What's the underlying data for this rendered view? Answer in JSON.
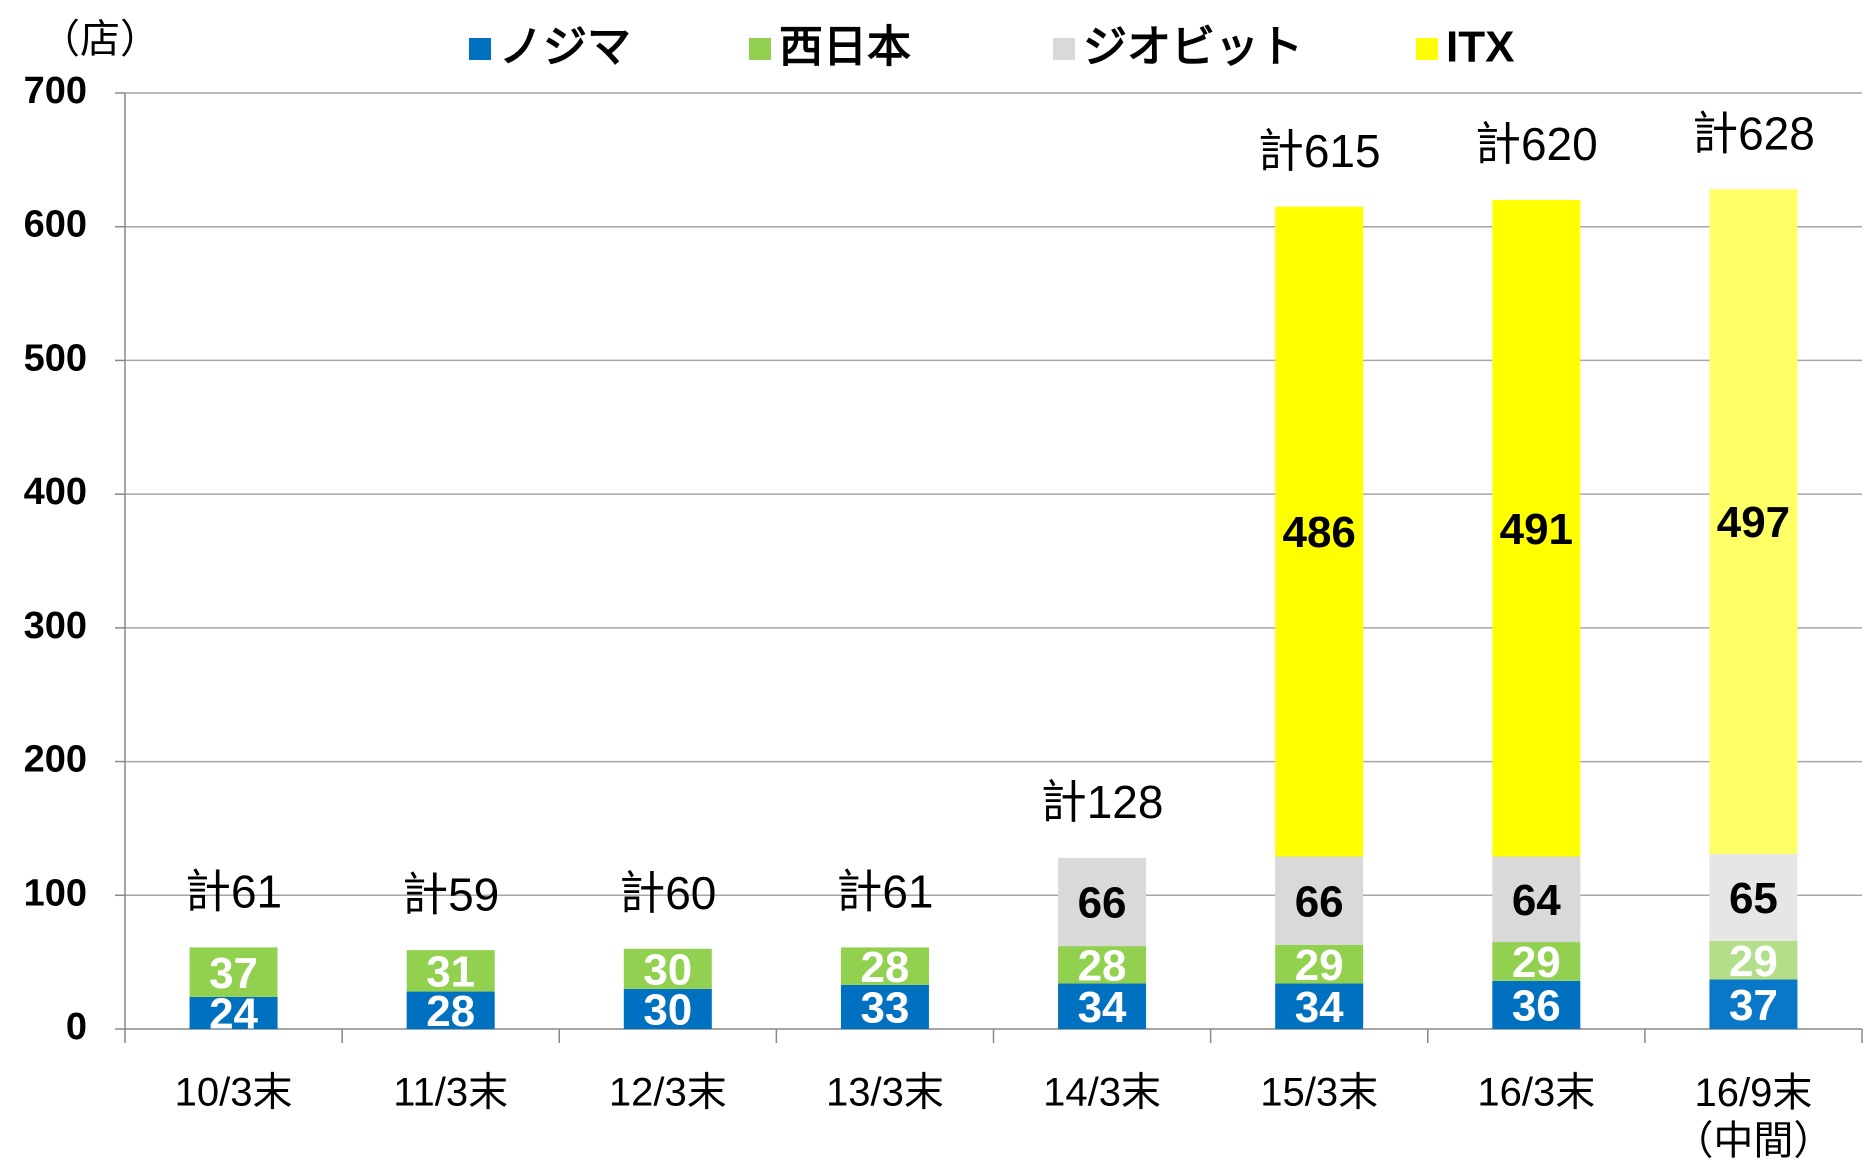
{
  "chart_data": {
    "type": "stacked_bar",
    "y_label": "（店）",
    "categories": [
      "10/3末",
      "11/3末",
      "12/3末",
      "13/3末",
      "14/3末",
      "15/3末",
      "16/3末",
      "16/9末\n（中間）"
    ],
    "series": [
      {
        "name": "ノジマ",
        "color": "#0070c0",
        "label_color": "#ffffff",
        "colors": [
          "#0070c0",
          "#0070c0",
          "#0070c0",
          "#0070c0",
          "#0070c0",
          "#0070c0",
          "#0070c0",
          "#0a78c8"
        ],
        "values": [
          24,
          28,
          30,
          33,
          34,
          34,
          36,
          37
        ]
      },
      {
        "name": "西日本",
        "color": "#92d050",
        "label_color": "#ffffff",
        "colors": [
          "#92d050",
          "#92d050",
          "#92d050",
          "#92d050",
          "#92d050",
          "#92d050",
          "#92d050",
          "#b3df8b"
        ],
        "values": [
          37,
          31,
          30,
          28,
          28,
          29,
          29,
          29
        ]
      },
      {
        "name": "ジオビット",
        "color": "#d9d9d9",
        "label_color": "#000000",
        "colors": [
          "#d9d9d9",
          "#d9d9d9",
          "#d9d9d9",
          "#d9d9d9",
          "#d9d9d9",
          "#d9d9d9",
          "#d9d9d9",
          "#e6e6e6"
        ],
        "values": [
          null,
          null,
          null,
          null,
          66,
          66,
          64,
          65
        ]
      },
      {
        "name": "ITX",
        "color": "#ffff00",
        "label_color": "#000000",
        "colors": [
          "#ffff00",
          "#ffff00",
          "#ffff00",
          "#ffff00",
          "#ffff00",
          "#ffff00",
          "#ffff00",
          "#ffff66"
        ],
        "values": [
          null,
          null,
          null,
          null,
          null,
          486,
          491,
          497
        ]
      }
    ],
    "totals": [
      61,
      59,
      60,
      61,
      128,
      615,
      620,
      628
    ],
    "total_labels": [
      "計61",
      "計59",
      "計60",
      "計61",
      "計128",
      "計615",
      "計620",
      "計628"
    ],
    "ylim": [
      0,
      700
    ],
    "yticks": [
      0,
      100,
      200,
      300,
      400,
      500,
      600,
      700
    ],
    "grid": true,
    "legend": "top"
  }
}
